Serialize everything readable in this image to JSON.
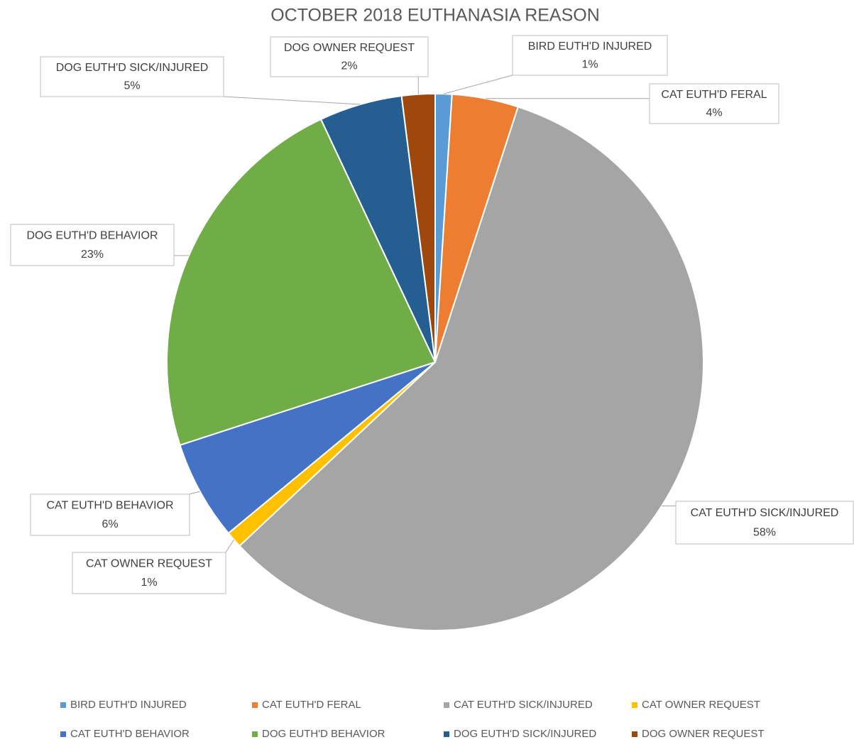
{
  "chart_data": {
    "type": "pie",
    "title": "OCTOBER 2018 EUTHANASIA REASON",
    "categories": [
      "BIRD EUTH'D INJURED",
      "CAT EUTH'D FERAL",
      "CAT EUTH'D SICK/INJURED",
      "CAT OWNER REQUEST",
      "CAT EUTH'D BEHAVIOR",
      "DOG EUTH'D BEHAVIOR",
      "DOG EUTH'D SICK/INJURED",
      "DOG OWNER REQUEST"
    ],
    "values": [
      1,
      4,
      58,
      1,
      6,
      23,
      5,
      2
    ],
    "value_labels": [
      "1%",
      "4%",
      "58%",
      "1%",
      "6%",
      "23%",
      "5%",
      "2%"
    ],
    "colors": [
      "#5b9bd5",
      "#ed7d31",
      "#a5a5a5",
      "#ffc000",
      "#4472c4",
      "#70ad47",
      "#255e91",
      "#9e480e"
    ],
    "legend": "bottom"
  }
}
